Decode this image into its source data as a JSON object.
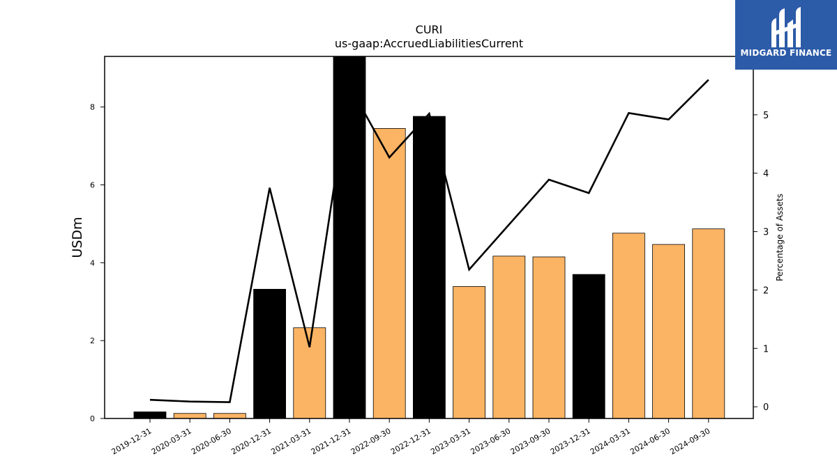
{
  "chart_data": {
    "type": "bar",
    "title": "CURI",
    "subtitle": "us-gaap:AccruedLiabilitiesCurrent",
    "ylabel": "USDm",
    "y2label": "Percentage of Assets",
    "ylim": [
      0,
      9.3
    ],
    "y2lim": [
      -0.2,
      6
    ],
    "yticks": [
      0,
      2,
      4,
      6,
      8
    ],
    "y2ticks": [
      0,
      1,
      2,
      3,
      4,
      5
    ],
    "categories": [
      "2019-12-31",
      "2020-03-31",
      "2020-06-30",
      "2020-12-31",
      "2021-03-31",
      "2021-12-31",
      "2022-09-30",
      "2022-12-31",
      "2023-03-31",
      "2023-06-30",
      "2023-09-30",
      "2023-12-31",
      "2024-03-31",
      "2024-06-30",
      "2024-09-30"
    ],
    "series": [
      {
        "type": "bar",
        "axis": "left",
        "values": [
          0.17,
          0.13,
          0.13,
          3.32,
          2.33,
          9.3,
          7.45,
          7.76,
          3.39,
          4.17,
          4.15,
          3.7,
          4.76,
          4.47,
          4.87
        ],
        "colors": [
          "#000000",
          "#fbb464",
          "#fbb464",
          "#000000",
          "#fbb464",
          "#000000",
          "#fbb464",
          "#000000",
          "#fbb464",
          "#fbb464",
          "#fbb464",
          "#000000",
          "#fbb464",
          "#fbb464",
          "#fbb464"
        ]
      },
      {
        "type": "line",
        "axis": "right",
        "color": "#000000",
        "values": [
          0.12,
          0.09,
          0.08,
          3.75,
          1.02,
          5.5,
          4.27,
          5.02,
          2.35,
          3.12,
          3.89,
          3.66,
          5.03,
          4.92,
          5.6
        ]
      }
    ],
    "grid": false
  },
  "logo": {
    "text": "MIDGARD FINANCE",
    "background": "#2c5ba8"
  }
}
